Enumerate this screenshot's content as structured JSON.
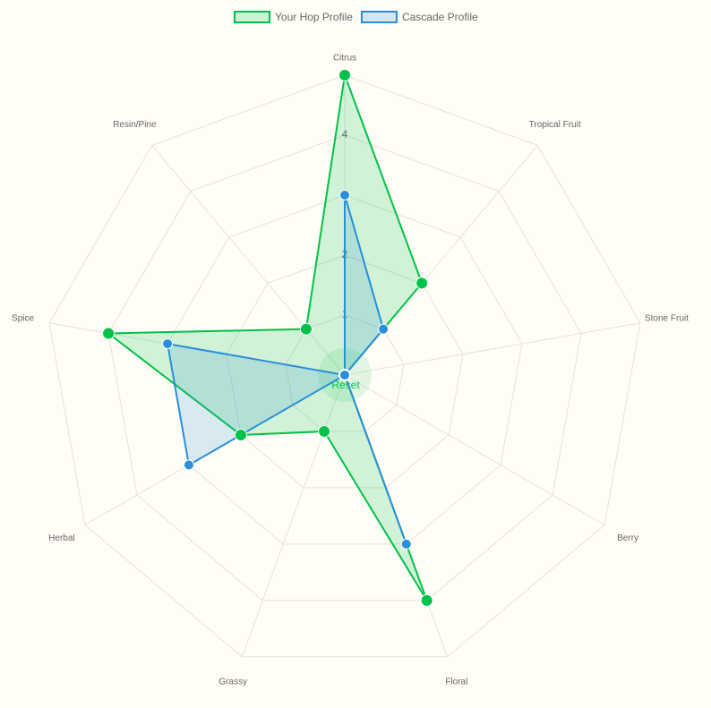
{
  "chart_data": {
    "type": "radar",
    "categories": [
      "Citrus",
      "Tropical Fruit",
      "Stone Fruit",
      "Berry",
      "Floral",
      "Grassy",
      "Herbal",
      "Spice",
      "Resin/Pine"
    ],
    "series": [
      {
        "name": "Your Hop Profile",
        "color": "#00c24a",
        "values": [
          5,
          2,
          0,
          0,
          4,
          1,
          2,
          4,
          1
        ]
      },
      {
        "name": "Cascade Profile",
        "color": "#2a8ed8",
        "values": [
          3,
          1,
          0,
          0,
          3,
          0,
          3,
          3,
          0
        ]
      }
    ],
    "rlim": [
      0,
      5
    ],
    "rticks": [
      1,
      2,
      3,
      4,
      5
    ],
    "grid": true,
    "legend": "top"
  },
  "reset_button": "Reset"
}
